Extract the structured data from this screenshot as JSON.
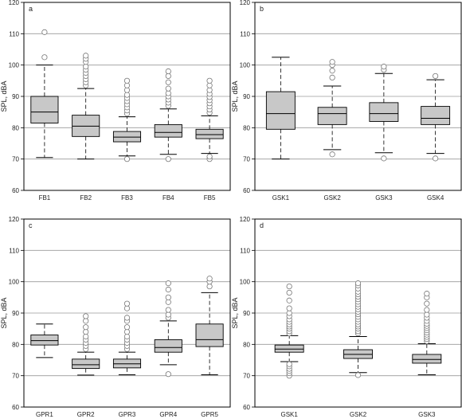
{
  "figure": {
    "background": "#ffffff",
    "box_fill": "#c8c8c8",
    "stroke": "#000000",
    "grid_color": "#9a9a9a"
  },
  "chart_data": [
    {
      "panel": "a",
      "type": "boxplot",
      "ylabel": "SPL, dBA",
      "ylim": [
        60,
        120
      ],
      "yticks": [
        60,
        70,
        80,
        90,
        100,
        110,
        120
      ],
      "grid": "y",
      "categories": [
        "FB1",
        "FB2",
        "FB3",
        "FB4",
        "FB5"
      ],
      "boxes": [
        {
          "whisker_low": 70.5,
          "q1": 81.5,
          "median": 85,
          "q3": 90,
          "whisker_high": 100,
          "outliers": [
            102.5,
            110.5
          ]
        },
        {
          "whisker_low": 70,
          "q1": 77.2,
          "median": 80.5,
          "q3": 84,
          "whisker_high": 92.5,
          "outliers": [
            93.5,
            94.5,
            95.5,
            96.5,
            97.5,
            98.5,
            99.5,
            101,
            102,
            103
          ]
        },
        {
          "whisker_low": 71,
          "q1": 75.5,
          "median": 77,
          "q3": 78.8,
          "whisker_high": 83.5,
          "outliers": [
            70,
            84.5,
            85.5,
            86.5,
            87.5,
            88.5,
            89.5,
            90.5,
            92,
            93.5,
            95
          ]
        },
        {
          "whisker_low": 71.5,
          "q1": 77,
          "median": 78.5,
          "q3": 81,
          "whisker_high": 86,
          "outliers": [
            70,
            87,
            88,
            89,
            90,
            91,
            92.5,
            94.5,
            96.5,
            98
          ]
        },
        {
          "whisker_low": 71.8,
          "q1": 76.5,
          "median": 77.8,
          "q3": 79.5,
          "whisker_high": 83.8,
          "outliers": [
            70,
            70.8,
            84.8,
            85.8,
            86.8,
            87.8,
            88.8,
            89.8,
            90.8,
            92,
            93.5,
            95
          ]
        }
      ]
    },
    {
      "panel": "b",
      "type": "boxplot",
      "ylabel": "SPL, dBA",
      "ylim": [
        60,
        120
      ],
      "yticks": [
        60,
        70,
        80,
        90,
        100,
        110,
        120
      ],
      "grid": "y",
      "categories": [
        "GSK1",
        "GSK2",
        "GSK3",
        "GSK4"
      ],
      "boxes": [
        {
          "whisker_low": 70,
          "q1": 79.5,
          "median": 84.5,
          "q3": 91.5,
          "whisker_high": 102.5,
          "outliers": []
        },
        {
          "whisker_low": 73,
          "q1": 81,
          "median": 84.5,
          "q3": 86.5,
          "whisker_high": 93.3,
          "outliers": [
            71.5,
            96,
            98.2,
            100,
            101
          ]
        },
        {
          "whisker_low": 72,
          "q1": 82,
          "median": 84.5,
          "q3": 88,
          "whisker_high": 97.3,
          "outliers": [
            70.2,
            98.5,
            99.5
          ]
        },
        {
          "whisker_low": 71.8,
          "q1": 81,
          "median": 83,
          "q3": 86.8,
          "whisker_high": 95.3,
          "outliers": [
            70.2,
            96.5
          ]
        }
      ]
    },
    {
      "panel": "c",
      "type": "boxplot",
      "ylabel": "SPL, dBA",
      "ylim": [
        60,
        120
      ],
      "yticks": [
        60,
        70,
        80,
        90,
        100,
        110,
        120
      ],
      "grid": "y",
      "categories": [
        "GPR1",
        "GPR2",
        "GPR3",
        "GPR4",
        "GPR5"
      ],
      "boxes": [
        {
          "whisker_low": 75.8,
          "q1": 79.8,
          "median": 81.2,
          "q3": 83,
          "whisker_high": 86.5,
          "outliers": []
        },
        {
          "whisker_low": 70.2,
          "q1": 72.3,
          "median": 73.5,
          "q3": 75.3,
          "whisker_high": 77.5,
          "outliers": [
            78.5,
            79.5,
            80.5,
            81.5,
            82.5,
            84,
            85.5,
            87.5,
            89
          ]
        },
        {
          "whisker_low": 70.3,
          "q1": 72.5,
          "median": 73.8,
          "q3": 75.3,
          "whisker_high": 77.5,
          "outliers": [
            78.5,
            79.5,
            80.5,
            81.5,
            82.5,
            84,
            85.5,
            87.5,
            88.5,
            91.5,
            93
          ]
        },
        {
          "whisker_low": 73.5,
          "q1": 77.5,
          "median": 79,
          "q3": 81.5,
          "whisker_high": 87.5,
          "outliers": [
            70.5,
            88.5,
            89.5,
            91,
            93.5,
            95,
            97.5,
            99.5
          ]
        },
        {
          "whisker_low": 70.3,
          "q1": 79.3,
          "median": 81.5,
          "q3": 86.5,
          "whisker_high": 96.5,
          "outliers": [
            98.5,
            100,
            101
          ]
        }
      ]
    },
    {
      "panel": "d",
      "type": "boxplot",
      "ylabel": "SPL, dBA",
      "ylim": [
        60,
        120
      ],
      "yticks": [
        60,
        70,
        80,
        90,
        100,
        110,
        120
      ],
      "grid": "y",
      "categories": [
        "GSK1",
        "GSK2",
        "GSK3"
      ],
      "boxes": [
        {
          "whisker_low": 74.5,
          "q1": 77.5,
          "median": 78.5,
          "q3": 79.8,
          "whisker_high": 82.8,
          "outliers": [
            70,
            70.8,
            71.5,
            72.2,
            73,
            73.7,
            83.5,
            84.2,
            85,
            85.7,
            86.4,
            87.2,
            88,
            89,
            90,
            91.5,
            94,
            96.5,
            98.5
          ]
        },
        {
          "whisker_low": 71,
          "q1": 75.5,
          "median": 76.8,
          "q3": 78.3,
          "whisker_high": 82.5,
          "outliers": [
            70.2,
            83.5,
            84.2,
            85,
            85.7,
            86.4,
            87.2,
            88,
            88.8,
            89.6,
            90.4,
            91.2,
            92,
            92.8,
            93.6,
            94.4,
            95.2,
            96,
            96.8,
            97.8,
            98.8,
            99.5
          ]
        },
        {
          "whisker_low": 70.3,
          "q1": 74,
          "median": 75.2,
          "q3": 76.8,
          "whisker_high": 80.2,
          "outliers": [
            81,
            81.7,
            82.4,
            83.1,
            83.8,
            84.5,
            85.2,
            85.9,
            86.6,
            87.5,
            88.5,
            89.5,
            91,
            93,
            95,
            96.2
          ]
        }
      ]
    }
  ]
}
